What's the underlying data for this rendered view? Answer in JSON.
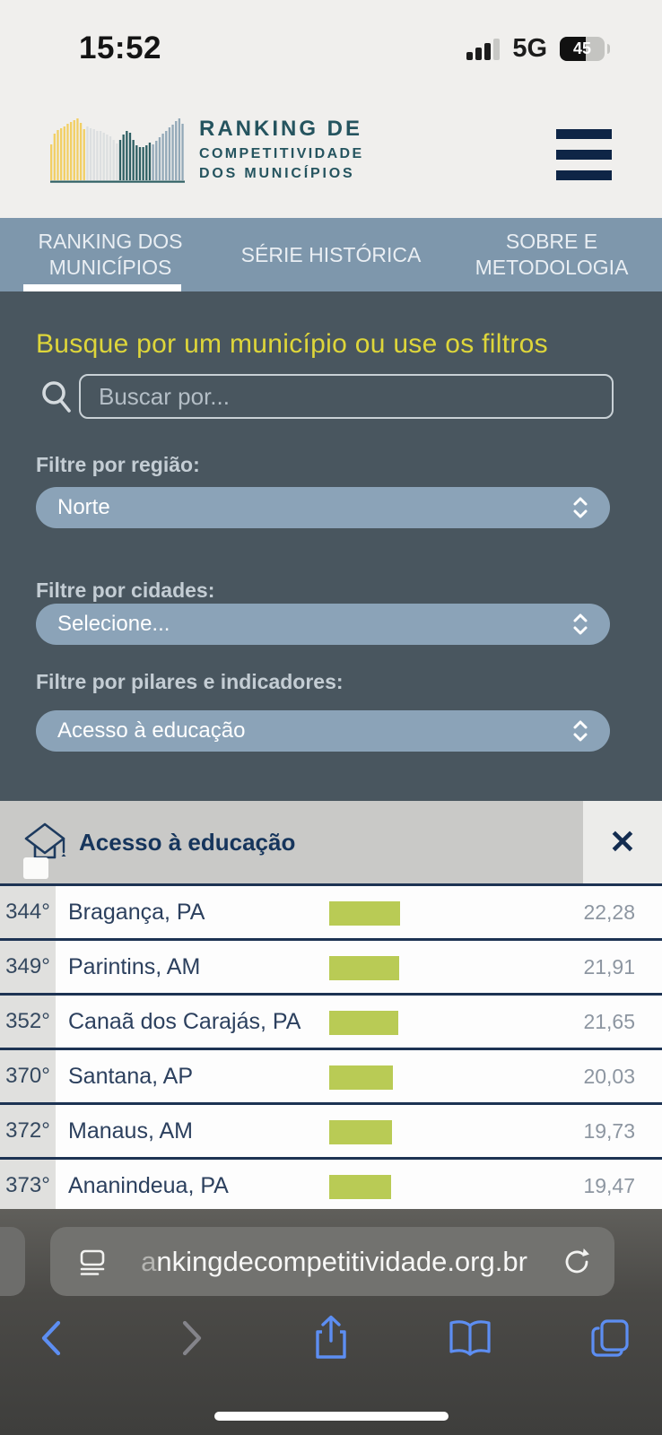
{
  "status_bar": {
    "time": "15:52",
    "network": "5G",
    "battery_percent": "45"
  },
  "header": {
    "logo_line1": "RANKING DE",
    "logo_line2": "COMPETITIVIDADE",
    "logo_line3": "DOS MUNICÍPIOS"
  },
  "nav": {
    "tabs": [
      {
        "label": "RANKING DOS MUNICÍPIOS",
        "active": true
      },
      {
        "label": "SÉRIE HISTÓRICA",
        "active": false
      },
      {
        "label": "SOBRE E METODOLOGIA",
        "active": false
      }
    ]
  },
  "filters": {
    "heading": "Busque por um município ou use os filtros",
    "search_placeholder": "Buscar por...",
    "region_label": "Filtre por região:",
    "region_value": "Norte",
    "cities_label": "Filtre por cidades:",
    "cities_value": "Selecione...",
    "pillars_label": "Filtre por pilares e indicadores:",
    "pillars_value": "Acesso à educação"
  },
  "result_panel": {
    "title": "Acesso à educação",
    "close_glyph": "✕"
  },
  "table": {
    "rows": [
      {
        "rank": "344°",
        "city": "Bragança, PA",
        "value": "22,28"
      },
      {
        "rank": "349°",
        "city": "Parintins, AM",
        "value": "21,91"
      },
      {
        "rank": "352°",
        "city": "Canaã dos Carajás, PA",
        "value": "21,65"
      },
      {
        "rank": "370°",
        "city": "Santana, AP",
        "value": "20,03"
      },
      {
        "rank": "372°",
        "city": "Manaus, AM",
        "value": "19,73"
      },
      {
        "rank": "373°",
        "city": "Ananindeua, PA",
        "value": "19,47"
      }
    ]
  },
  "browser": {
    "url_faded": "a",
    "url": "nkingdecompetitividade.org.br"
  },
  "icons": {
    "close": "✕",
    "search": "magnifier-icon",
    "menu": "hamburger-menu-icon",
    "select": "up-down-chevrons-icon",
    "education": "graduation-cap-icon",
    "reader": "page-reader-icon",
    "reload": "reload-icon",
    "back": "chevron-left-icon",
    "forward": "chevron-right-icon",
    "share": "share-icon",
    "bookmarks": "open-book-icon",
    "tabs": "tabs-icon"
  },
  "colors": {
    "accent_yellow": "#ded63a",
    "nav_blue": "#7e97ac",
    "dark_slate": "#49565f",
    "pill_blue": "#8ba3b8",
    "navy": "#16355c",
    "bar_green": "#b9cb55",
    "ios_blue": "#5d8ef2"
  }
}
